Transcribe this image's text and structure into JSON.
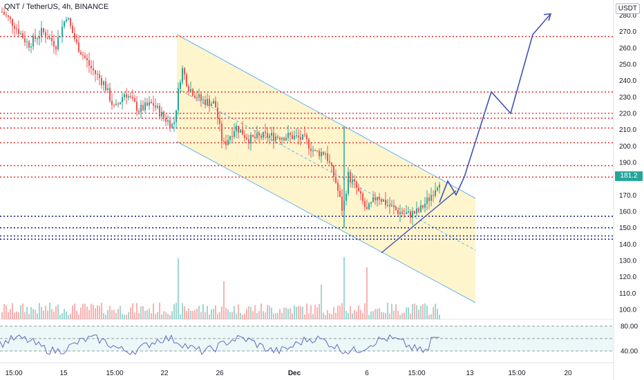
{
  "header": {
    "title": "QNT / TetherUS, 4h, BINANCE",
    "currency": "USDT"
  },
  "last_price": "181.2",
  "colors": {
    "bull": "#26a69a",
    "bear": "#ef5350",
    "resistance": "#e53935",
    "support": "#1a237e",
    "channel_fill": "#fff3c4",
    "channel_line": "#64b5f6",
    "projection": "#3f51b5",
    "rsi_band": "#e0f2f1"
  },
  "chart_data": {
    "type": "candlestick",
    "price_axis": {
      "ticks": [
        "280.0",
        "270.0",
        "260.0",
        "250.0",
        "240.0",
        "230.0",
        "220.0",
        "210.0",
        "200.0",
        "190.0",
        "170.0",
        "160.0",
        "150.0",
        "140.0",
        "130.0",
        "120.0",
        "110.0",
        "100.0"
      ],
      "range": [
        95,
        285
      ]
    },
    "rsi_axis": {
      "ticks": [
        "80.00",
        "40.00"
      ],
      "range": [
        20,
        90
      ]
    },
    "time_axis": {
      "ticks": [
        "15:00",
        "15",
        "15:00",
        "22",
        "26",
        "Dec",
        "6",
        "15:00",
        "13",
        "15:00",
        "20"
      ]
    },
    "horizontal_levels": {
      "resistance": [
        267,
        233,
        220,
        217,
        211,
        202,
        188,
        181
      ],
      "support": [
        157,
        150,
        145,
        143
      ]
    }
  }
}
